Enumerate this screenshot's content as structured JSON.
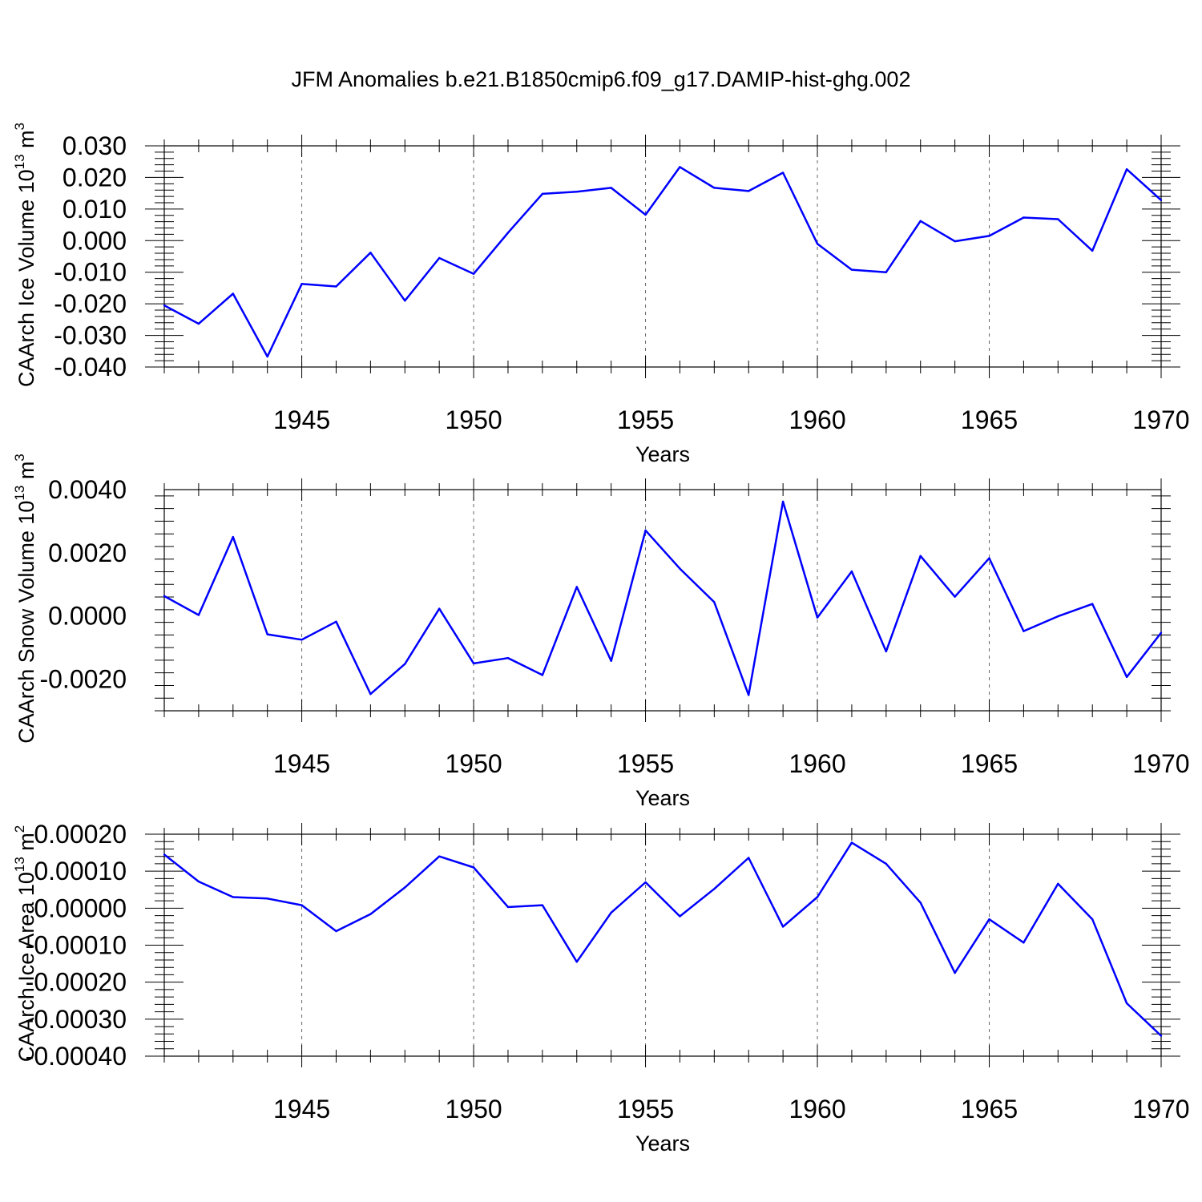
{
  "title": "JFM Anomalies b.e21.B1850cmip6.f09_g17.DAMIP-hist-ghg.002",
  "chart_data": [
    {
      "type": "line",
      "ylabel": "CAArch Ice Volume 10",
      "ylabel_exp": "13",
      "ylabel_unit": " m",
      "ylabel_unit_exp": "3",
      "xlabel": "Years",
      "xlim": [
        1941,
        1970
      ],
      "ylim": [
        -0.04,
        0.03
      ],
      "yticks": [
        0.03,
        0.02,
        0.01,
        0.0,
        -0.01,
        -0.02,
        -0.03,
        -0.04
      ],
      "ytick_labels": [
        "0.030",
        "0.020",
        "0.010",
        "0.000",
        "-0.010",
        "-0.020",
        "-0.030",
        "-0.040"
      ],
      "xticks": [
        1945,
        1950,
        1955,
        1960,
        1965,
        1970
      ],
      "xtick_labels": [
        "1945",
        "1950",
        "1955",
        "1960",
        "1965",
        "1970"
      ],
      "color": "#0000ff",
      "x": [
        1941,
        1942,
        1943,
        1944,
        1945,
        1946,
        1947,
        1948,
        1949,
        1950,
        1951,
        1952,
        1953,
        1954,
        1955,
        1956,
        1957,
        1958,
        1959,
        1960,
        1961,
        1962,
        1963,
        1964,
        1965,
        1966,
        1967,
        1968,
        1969,
        1970
      ],
      "values": [
        -0.0205,
        -0.0263,
        -0.0168,
        -0.0367,
        -0.0137,
        -0.0145,
        -0.0038,
        -0.019,
        -0.0055,
        -0.0105,
        0.0025,
        0.0148,
        0.0155,
        0.0167,
        0.0082,
        0.0233,
        0.0167,
        0.0157,
        0.0215,
        -0.001,
        -0.0092,
        -0.01,
        0.0062,
        -0.0002,
        0.0015,
        0.0073,
        0.0068,
        -0.0032,
        0.0226,
        0.0128
      ]
    },
    {
      "type": "line",
      "ylabel": "CAArch Snow Volume 10",
      "ylabel_exp": "13",
      "ylabel_unit": " m",
      "ylabel_unit_exp": "3",
      "xlabel": "Years",
      "xlim": [
        1941,
        1970
      ],
      "ylim": [
        -0.003,
        0.004
      ],
      "yticks": [
        0.004,
        0.002,
        0.0,
        -0.002
      ],
      "ytick_labels": [
        "0.0040",
        "0.0020",
        "0.0000",
        "-0.0020"
      ],
      "xticks": [
        1945,
        1950,
        1955,
        1960,
        1965,
        1970
      ],
      "xtick_labels": [
        "1945",
        "1950",
        "1955",
        "1960",
        "1965",
        "1970"
      ],
      "color": "#0000ff",
      "x": [
        1941,
        1942,
        1943,
        1944,
        1945,
        1946,
        1947,
        1948,
        1949,
        1950,
        1951,
        1952,
        1953,
        1954,
        1955,
        1956,
        1957,
        1958,
        1959,
        1960,
        1961,
        1962,
        1963,
        1964,
        1965,
        1966,
        1967,
        1968,
        1969,
        1970
      ],
      "values": [
        0.00063,
        3e-05,
        0.0025,
        -0.00058,
        -0.00075,
        -0.00018,
        -0.00247,
        -0.00152,
        0.00023,
        -0.0015,
        -0.00133,
        -0.00187,
        0.00092,
        -0.00142,
        0.00271,
        0.0015,
        0.00044,
        -0.0025,
        0.00362,
        -5e-05,
        0.00141,
        -0.00112,
        0.0019,
        0.00061,
        0.00183,
        -0.00048,
        -1e-05,
        0.00038,
        -0.00193,
        -0.00053
      ]
    },
    {
      "type": "line",
      "ylabel": "CAArch Ice Area 10",
      "ylabel_exp": "13",
      "ylabel_unit": " m",
      "ylabel_unit_exp": "2",
      "xlabel": "Years",
      "xlim": [
        1941,
        1970
      ],
      "ylim": [
        -0.0004,
        0.0002
      ],
      "yticks": [
        0.0002,
        0.0001,
        0.0,
        -0.0001,
        -0.0002,
        -0.0003,
        -0.0004
      ],
      "ytick_labels": [
        "0.00020",
        "0.00010",
        "0.00000",
        "-0.00010",
        "-0.00020",
        "-0.00030",
        "-0.00040"
      ],
      "xticks": [
        1945,
        1950,
        1955,
        1960,
        1965,
        1970
      ],
      "xtick_labels": [
        "1945",
        "1950",
        "1955",
        "1960",
        "1965",
        "1970"
      ],
      "color": "#0000ff",
      "x": [
        1941,
        1942,
        1943,
        1944,
        1945,
        1946,
        1947,
        1948,
        1949,
        1950,
        1951,
        1952,
        1953,
        1954,
        1955,
        1956,
        1957,
        1958,
        1959,
        1960,
        1961,
        1962,
        1963,
        1964,
        1965,
        1966,
        1967,
        1968,
        1969,
        1970
      ],
      "values": [
        0.000145,
        7.2e-05,
        3e-05,
        2.6e-05,
        8e-06,
        -6.2e-05,
        -1.6e-05,
        5.6e-05,
        0.00014,
        0.00011,
        3e-06,
        8e-06,
        -0.000145,
        -1.2e-05,
        7e-05,
        -2.2e-05,
        5.2e-05,
        0.000136,
        -5e-05,
        3e-05,
        0.000177,
        0.00012,
        1.5e-05,
        -0.000175,
        -3e-05,
        -9.3e-05,
        6.6e-05,
        -3e-05,
        -0.000257,
        -0.000345
      ]
    }
  ]
}
